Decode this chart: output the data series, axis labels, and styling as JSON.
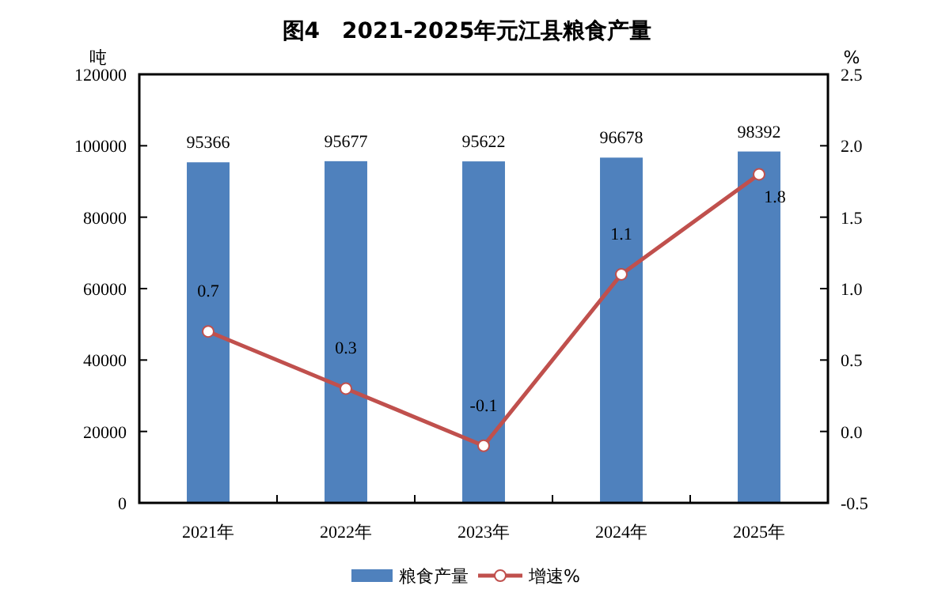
{
  "chart_data": {
    "type": "bar",
    "title": "图4　2021-2025年元江县粮食产量",
    "ylabel": "吨",
    "y2label": "%",
    "categories": [
      "2021年",
      "2022年",
      "2023年",
      "2024年",
      "2025年"
    ],
    "series": [
      {
        "name": "粮食产量",
        "color": "#4f81bd",
        "values": [
          95366,
          95677,
          95622,
          96678,
          98392
        ]
      },
      {
        "name": "增速%",
        "type": "line",
        "axis": "y2",
        "color": "#c0504d",
        "marker": "circle",
        "values": [
          0.7,
          0.3,
          -0.1,
          1.1,
          1.8
        ]
      }
    ],
    "ylim": [
      0,
      120000
    ],
    "yticks": [
      0,
      20000,
      40000,
      60000,
      80000,
      100000,
      120000
    ],
    "y2lim": [
      -0.5,
      2.5
    ],
    "y2ticks": [
      -0.5,
      {
        "value": 0,
        "label": "0.0"
      },
      0.5,
      {
        "value": 1,
        "label": "1.0"
      },
      1.5,
      {
        "value": 2,
        "label": "2.0"
      },
      2.5
    ],
    "data_labels": true,
    "legend": "bottom",
    "grid": false
  }
}
